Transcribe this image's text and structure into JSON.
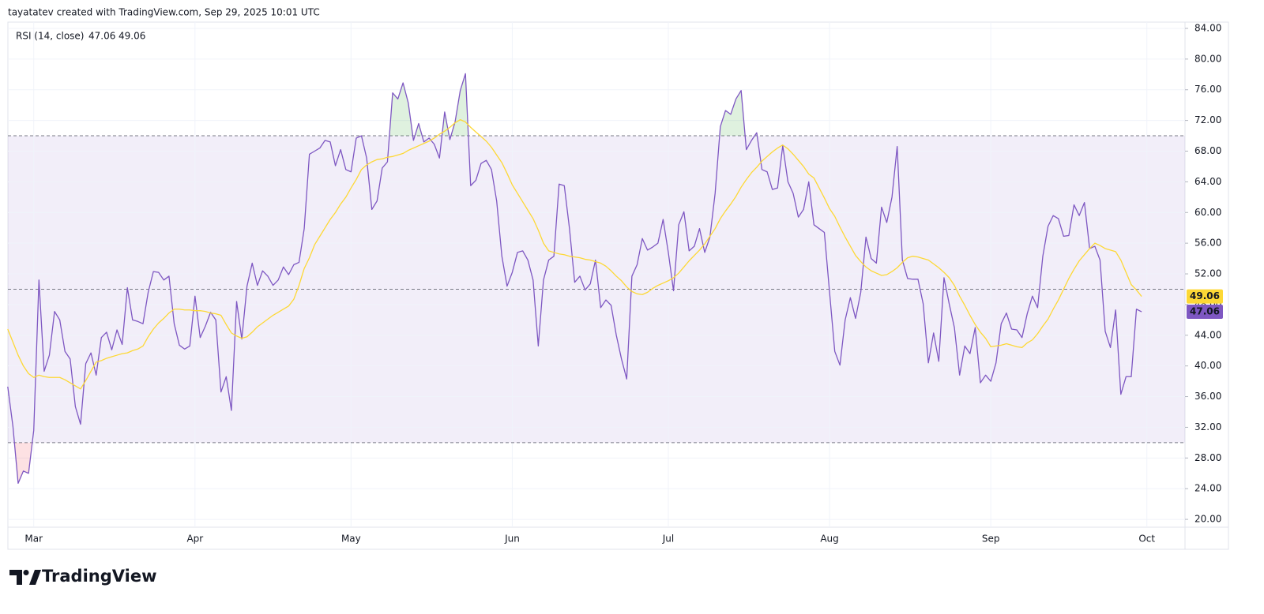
{
  "header": "tayatatev created with TradingView.com, Sep 29, 2025 10:01 UTC",
  "footer": {
    "brand": "TradingView"
  },
  "chart_data": {
    "type": "line",
    "legend_title": "RSI (14, close)",
    "categories": [
      null,
      null,
      null,
      null,
      null,
      "Mar",
      null,
      null,
      null,
      null,
      null,
      null,
      null,
      null,
      null,
      null,
      null,
      null,
      null,
      null,
      null,
      null,
      null,
      null,
      null,
      null,
      null,
      null,
      null,
      null,
      null,
      null,
      null,
      null,
      null,
      null,
      "Apr",
      null,
      null,
      null,
      null,
      null,
      null,
      null,
      null,
      null,
      null,
      null,
      null,
      null,
      null,
      null,
      null,
      null,
      null,
      null,
      null,
      null,
      null,
      null,
      null,
      null,
      null,
      null,
      null,
      null,
      "May",
      null,
      null,
      null,
      null,
      null,
      null,
      null,
      null,
      null,
      null,
      null,
      null,
      null,
      null,
      null,
      null,
      null,
      null,
      null,
      null,
      null,
      null,
      null,
      null,
      null,
      null,
      null,
      null,
      null,
      null,
      "Jun",
      null,
      null,
      null,
      null,
      null,
      null,
      null,
      null,
      null,
      null,
      null,
      null,
      null,
      null,
      null,
      null,
      null,
      null,
      null,
      null,
      null,
      null,
      null,
      null,
      null,
      null,
      null,
      null,
      null,
      "Jul",
      null,
      null,
      null,
      null,
      null,
      null,
      null,
      null,
      null,
      null,
      null,
      null,
      null,
      null,
      null,
      null,
      null,
      null,
      null,
      null,
      null,
      null,
      null,
      null,
      null,
      null,
      null,
      null,
      null,
      null,
      "Aug",
      null,
      null,
      null,
      null,
      null,
      null,
      null,
      null,
      null,
      null,
      null,
      null,
      null,
      null,
      null,
      null,
      null,
      null,
      null,
      null,
      null,
      null,
      null,
      null,
      null,
      null,
      null,
      null,
      null,
      null,
      "Sep",
      null,
      null,
      null,
      null,
      null,
      null,
      null,
      null,
      null,
      null,
      null,
      null,
      null,
      null,
      null,
      null,
      null,
      null,
      null,
      null,
      null,
      null,
      null,
      null,
      null,
      null,
      null,
      null,
      null,
      "Oct"
    ],
    "series": [
      {
        "color": "#7e57c2",
        "values": [
          37.3,
          32.1,
          24.7,
          26.3,
          26.0,
          31.6,
          51.2,
          39.3,
          41.4,
          47.1,
          46.0,
          41.9,
          40.9,
          34.7,
          32.4,
          40.3,
          41.7,
          38.8,
          43.7,
          44.4,
          42.1,
          44.7,
          42.8,
          50.2,
          46.0,
          45.8,
          45.5,
          49.6,
          52.3,
          52.2,
          51.2,
          51.7,
          45.5,
          42.7,
          42.2,
          42.6,
          49.1,
          43.7,
          45.2,
          47.0,
          46.0,
          36.6,
          38.6,
          34.2,
          48.4,
          43.5,
          50.4,
          53.4,
          50.5,
          52.4,
          51.7,
          50.5,
          51.2,
          52.9,
          51.9,
          53.2,
          53.5,
          57.9,
          67.6,
          68.0,
          68.4,
          69.4,
          69.2,
          66.1,
          68.2,
          65.6,
          65.3,
          69.7,
          70.0,
          67.1,
          60.4,
          61.5,
          65.8,
          66.6,
          75.6,
          74.8,
          76.9,
          74.3,
          69.4,
          71.6,
          69.2,
          69.7,
          68.9,
          67.1,
          73.1,
          69.5,
          71.8,
          75.9,
          78.1,
          63.5,
          64.2,
          66.4,
          66.8,
          65.6,
          61.5,
          54.3,
          50.4,
          52.2,
          54.8,
          55.0,
          53.8,
          51.2,
          42.6,
          51.2,
          53.8,
          54.3,
          63.7,
          63.5,
          57.9,
          50.9,
          51.7,
          49.9,
          50.7,
          53.8,
          47.6,
          48.6,
          47.9,
          44.0,
          40.9,
          38.3,
          51.7,
          53.2,
          56.6,
          55.1,
          55.5,
          56.0,
          59.1,
          54.8,
          49.8,
          58.4,
          60.1,
          55.0,
          55.6,
          57.9,
          54.8,
          56.8,
          62.5,
          71.2,
          73.3,
          72.8,
          74.8,
          75.9,
          68.2,
          69.4,
          70.4,
          65.6,
          65.3,
          63.0,
          63.2,
          68.7,
          64.0,
          62.5,
          59.4,
          60.4,
          64.0,
          58.4,
          57.9,
          57.4,
          49.6,
          41.9,
          40.1,
          46.0,
          48.9,
          46.2,
          49.6,
          56.8,
          54.0,
          53.4,
          60.7,
          58.7,
          62.0,
          68.6,
          53.8,
          51.4,
          51.3,
          51.3,
          48.1,
          40.4,
          44.3,
          40.6,
          51.5,
          48.1,
          45.0,
          38.8,
          42.6,
          41.6,
          45.0,
          37.8,
          38.8,
          38.0,
          40.4,
          45.5,
          46.9,
          44.8,
          44.7,
          43.7,
          46.8,
          49.1,
          47.6,
          54.3,
          58.2,
          59.6,
          59.2,
          56.9,
          57.0,
          61.0,
          59.6,
          61.3,
          55.3,
          55.6,
          53.8,
          44.5,
          42.4,
          47.3,
          36.3,
          38.6,
          38.6,
          47.4,
          47.06,
          null
        ]
      },
      {
        "color": "#fdd835",
        "values": [
          44.8,
          43.1,
          41.4,
          40.0,
          39.0,
          38.5,
          38.8,
          38.6,
          38.5,
          38.5,
          38.5,
          38.2,
          37.8,
          37.4,
          37.0,
          38.1,
          39.3,
          40.5,
          40.7,
          41.0,
          41.2,
          41.4,
          41.6,
          41.7,
          42.0,
          42.2,
          42.6,
          43.8,
          44.8,
          45.6,
          46.2,
          46.9,
          47.4,
          47.4,
          47.3,
          47.3,
          47.2,
          47.2,
          47.1,
          46.9,
          46.8,
          46.6,
          45.4,
          44.3,
          43.9,
          43.6,
          43.8,
          44.4,
          45.1,
          45.6,
          46.1,
          46.6,
          47.0,
          47.4,
          47.8,
          48.7,
          50.5,
          52.7,
          54.1,
          55.8,
          56.9,
          58.0,
          59.1,
          60.0,
          61.1,
          62.0,
          63.2,
          64.3,
          65.6,
          66.2,
          66.6,
          66.9,
          67.0,
          67.2,
          67.3,
          67.5,
          67.7,
          68.1,
          68.4,
          68.7,
          69.0,
          69.3,
          69.7,
          70.2,
          70.6,
          71.1,
          71.7,
          72.1,
          71.8,
          71.1,
          70.5,
          69.9,
          69.3,
          68.5,
          67.5,
          66.5,
          65.1,
          63.6,
          62.5,
          61.4,
          60.3,
          59.2,
          57.7,
          56.0,
          55.0,
          54.8,
          54.6,
          54.5,
          54.3,
          54.2,
          54.1,
          53.9,
          53.8,
          53.6,
          53.4,
          53.0,
          52.4,
          51.7,
          51.1,
          50.3,
          49.7,
          49.4,
          49.3,
          49.6,
          50.1,
          50.5,
          50.8,
          51.1,
          51.5,
          52.1,
          52.9,
          53.7,
          54.4,
          55.1,
          55.9,
          56.9,
          57.9,
          59.2,
          60.2,
          61.1,
          62.1,
          63.3,
          64.3,
          65.2,
          65.9,
          66.7,
          67.3,
          67.9,
          68.4,
          68.8,
          68.3,
          67.6,
          66.8,
          66.0,
          65.0,
          64.5,
          63.2,
          61.9,
          60.5,
          59.5,
          58.1,
          56.8,
          55.6,
          54.4,
          53.6,
          52.9,
          52.4,
          52.1,
          51.8,
          51.9,
          52.3,
          52.8,
          53.5,
          54.1,
          54.3,
          54.2,
          54.0,
          53.8,
          53.3,
          52.8,
          52.2,
          51.5,
          50.5,
          49.1,
          47.9,
          46.6,
          45.4,
          44.4,
          43.6,
          42.5,
          42.6,
          42.7,
          42.9,
          42.7,
          42.5,
          42.4,
          43.0,
          43.4,
          44.2,
          45.2,
          46.1,
          47.4,
          48.6,
          50.0,
          51.4,
          52.6,
          53.7,
          54.5,
          55.3,
          56.0,
          55.7,
          55.3,
          55.1,
          54.9,
          53.8,
          52.2,
          50.6,
          49.9,
          49.06,
          null
        ]
      }
    ],
    "levels": [
      70,
      50,
      30
    ],
    "ylim": [
      19,
      84.8
    ],
    "yticks": [
      {
        "value": 84,
        "label": "84.00"
      },
      {
        "value": 80,
        "label": "80.00"
      },
      {
        "value": 76,
        "label": "76.00"
      },
      {
        "value": 72,
        "label": "72.00"
      },
      {
        "value": 68,
        "label": "68.00"
      },
      {
        "value": 64,
        "label": "64.00"
      },
      {
        "value": 60,
        "label": "60.00"
      },
      {
        "value": 56,
        "label": "56.00"
      },
      {
        "value": 52,
        "label": "52.00"
      },
      {
        "value": 48,
        "label": "48.00"
      },
      {
        "value": 44,
        "label": "44.00"
      },
      {
        "value": 40,
        "label": "40.00"
      },
      {
        "value": 36,
        "label": "36.00"
      },
      {
        "value": 32,
        "label": "32.00"
      },
      {
        "value": 28,
        "label": "28.00"
      },
      {
        "value": 24,
        "label": "24.00"
      },
      {
        "value": 20,
        "label": "20.00"
      }
    ],
    "grid": true
  }
}
